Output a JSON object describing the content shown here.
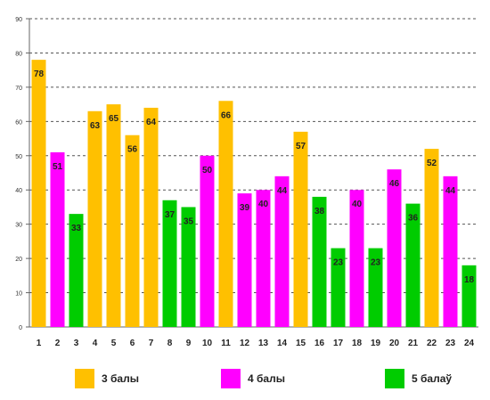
{
  "chart_data": {
    "type": "bar",
    "categories": [
      "1",
      "2",
      "3",
      "4",
      "5",
      "6",
      "7",
      "8",
      "9",
      "10",
      "11",
      "12",
      "13",
      "14",
      "15",
      "16",
      "17",
      "18",
      "19",
      "20",
      "21",
      "22",
      "23",
      "24"
    ],
    "values": [
      78,
      51,
      33,
      63,
      65,
      56,
      64,
      37,
      35,
      50,
      66,
      39,
      40,
      44,
      57,
      38,
      23,
      40,
      23,
      46,
      36,
      52,
      44,
      18
    ],
    "groups": [
      "3 балы",
      "4 балы",
      "5 балаў",
      "3 балы",
      "3 балы",
      "3 балы",
      "3 балы",
      "5 балаў",
      "5 балаў",
      "4 балы",
      "3 балы",
      "4 балы",
      "4 балы",
      "4 балы",
      "3 балы",
      "5 балаў",
      "5 балаў",
      "4 балы",
      "5 балаў",
      "4 балы",
      "5 балаў",
      "3 балы",
      "4 балы",
      "5 балаў"
    ],
    "ylim": [
      0,
      90
    ],
    "yticks": [
      0,
      10,
      20,
      30,
      40,
      50,
      60,
      70,
      80,
      90
    ],
    "grid": true,
    "legend_position": "bottom",
    "legend": [
      {
        "label": "3 балы",
        "color": "#FFC000"
      },
      {
        "label": "4 балы",
        "color": "#FF00FF"
      },
      {
        "label": "5 балаў",
        "color": "#00CC00"
      }
    ]
  }
}
